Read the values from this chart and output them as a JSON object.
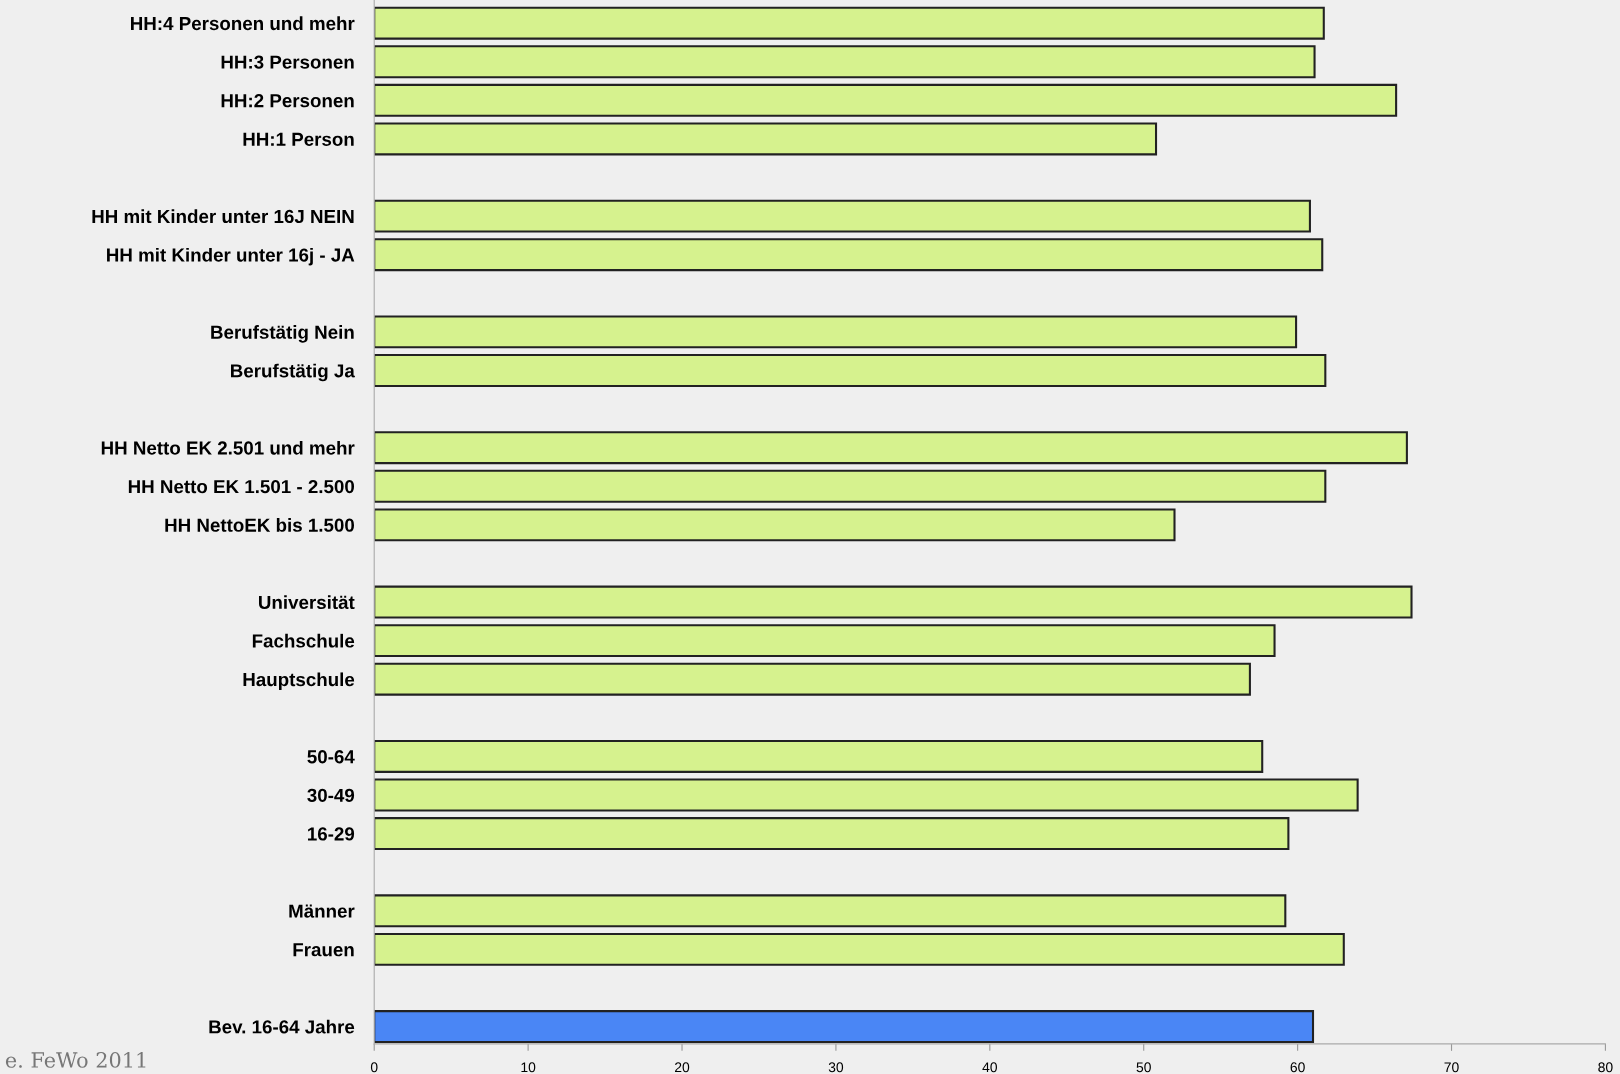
{
  "chart_data": {
    "type": "bar",
    "orientation": "horizontal",
    "categories": [
      "HH:4 Personen und mehr",
      "HH:3 Personen",
      "HH:2 Personen",
      "HH:1 Person",
      null,
      "HH mit Kinder unter 16J NEIN",
      "HH mit Kinder unter 16j - JA",
      null,
      "Berufstätig Nein",
      "Berufstätig Ja",
      null,
      "HH Netto EK 2.501 und mehr",
      "HH Netto EK 1.501 - 2.500",
      "HH NettoEK bis 1.500",
      null,
      "Universität",
      "Fachschule",
      "Hauptschule",
      null,
      "50-64",
      "30-49",
      "16-29",
      null,
      "Männer",
      "Frauen",
      null,
      "Bev. 16-64 Jahre"
    ],
    "values": [
      61.7,
      61.1,
      66.4,
      50.8,
      null,
      60.8,
      61.6,
      null,
      59.9,
      61.8,
      null,
      67.1,
      61.8,
      52.0,
      null,
      67.4,
      58.5,
      56.9,
      null,
      57.7,
      63.9,
      59.4,
      null,
      59.2,
      63.0,
      null,
      61.0
    ],
    "colors": [
      "#d6f28e",
      "#d6f28e",
      "#d6f28e",
      "#d6f28e",
      null,
      "#d6f28e",
      "#d6f28e",
      null,
      "#d6f28e",
      "#d6f28e",
      null,
      "#d6f28e",
      "#d6f28e",
      "#d6f28e",
      null,
      "#d6f28e",
      "#d6f28e",
      "#d6f28e",
      null,
      "#d6f28e",
      "#d6f28e",
      "#d6f28e",
      null,
      "#d6f28e",
      "#d6f28e",
      null,
      "#4a86f5"
    ],
    "xlim": [
      0,
      80
    ],
    "xticks": [
      0,
      10,
      20,
      30,
      40,
      50,
      60,
      70,
      80
    ],
    "grid": false,
    "legend": false,
    "annotations": [
      "e. FeWo 2011"
    ]
  }
}
